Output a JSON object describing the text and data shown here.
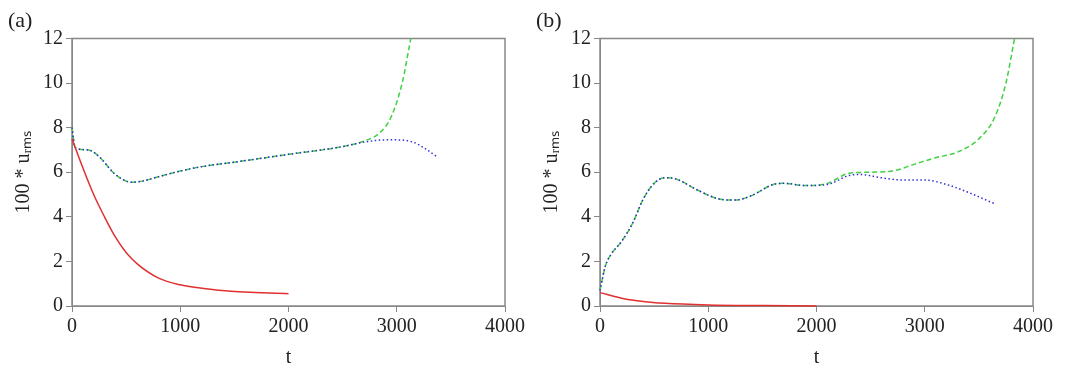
{
  "chart_data": [
    {
      "type": "line",
      "title": "(a)",
      "xlabel": "t",
      "ylabel": "100 * uᵣₘₛ",
      "xlim": [
        0,
        4000
      ],
      "xticks": [
        0,
        1000,
        2000,
        3000,
        4000
      ],
      "ylim": [
        0,
        12
      ],
      "yticks": [
        0,
        2,
        4,
        6,
        8,
        10,
        12
      ],
      "grid": false,
      "legend": false,
      "marker": "none",
      "series": [
        {
          "color": "#e03030",
          "line_style": "solid",
          "x": [
            0,
            100,
            200,
            300,
            400,
            500,
            600,
            800,
            1000,
            1200,
            1500,
            2000
          ],
          "values": [
            7.5,
            6.2,
            5.0,
            4.0,
            3.1,
            2.4,
            1.9,
            1.25,
            0.95,
            0.8,
            0.65,
            0.55
          ]
        },
        {
          "color": "#3030d0",
          "line_style": "dotted",
          "x": [
            0,
            30,
            150,
            250,
            400,
            550,
            650,
            800,
            1000,
            1200,
            1500,
            2000,
            2500,
            2700,
            2900,
            3000,
            3150,
            3250,
            3370
          ],
          "values": [
            8.0,
            7.1,
            7.0,
            6.7,
            5.9,
            5.55,
            5.6,
            5.8,
            6.05,
            6.25,
            6.45,
            6.8,
            7.15,
            7.35,
            7.45,
            7.45,
            7.35,
            7.1,
            6.7
          ]
        },
        {
          "color": "#40d040",
          "line_style": "dashed",
          "x": [
            0,
            30,
            150,
            250,
            400,
            550,
            650,
            800,
            1000,
            1200,
            1500,
            2000,
            2500,
            2700,
            2850,
            2950,
            3050,
            3130
          ],
          "values": [
            8.0,
            7.1,
            7.0,
            6.7,
            5.9,
            5.55,
            5.6,
            5.8,
            6.05,
            6.25,
            6.45,
            6.8,
            7.15,
            7.4,
            7.8,
            8.5,
            10.0,
            12
          ]
        }
      ]
    },
    {
      "type": "line",
      "title": "(b)",
      "xlabel": "t",
      "ylabel": "100 * uᵣₘₛ",
      "xlim": [
        0,
        4000
      ],
      "xticks": [
        0,
        1000,
        2000,
        3000,
        4000
      ],
      "ylim": [
        0,
        12
      ],
      "yticks": [
        0,
        2,
        4,
        6,
        8,
        10,
        12
      ],
      "grid": false,
      "legend": false,
      "marker": "none",
      "series": [
        {
          "color": "#e03030",
          "line_style": "solid",
          "x": [
            0,
            200,
            400,
            600,
            1000,
            1500,
            2000
          ],
          "values": [
            0.6,
            0.35,
            0.2,
            0.12,
            0.05,
            0.02,
            0
          ]
        },
        {
          "color": "#3030d0",
          "line_style": "dotted",
          "x": [
            0,
            50,
            100,
            200,
            300,
            400,
            500,
            600,
            700,
            900,
            1100,
            1250,
            1400,
            1600,
            1700,
            1900,
            2100,
            2300,
            2400,
            2600,
            2800,
            3000,
            3200,
            3400,
            3640
          ],
          "values": [
            0.7,
            1.8,
            2.3,
            2.9,
            3.7,
            4.8,
            5.5,
            5.75,
            5.7,
            5.2,
            4.8,
            4.75,
            4.95,
            5.45,
            5.5,
            5.4,
            5.45,
            5.85,
            5.9,
            5.75,
            5.65,
            5.65,
            5.45,
            5.1,
            4.6
          ]
        },
        {
          "color": "#40d040",
          "line_style": "dashed",
          "x": [
            0,
            50,
            100,
            200,
            300,
            400,
            500,
            600,
            700,
            900,
            1100,
            1250,
            1400,
            1600,
            1700,
            1900,
            2100,
            2300,
            2500,
            2700,
            2900,
            3100,
            3300,
            3500,
            3650,
            3750,
            3830
          ],
          "values": [
            0.7,
            1.8,
            2.3,
            2.9,
            3.7,
            4.8,
            5.5,
            5.75,
            5.7,
            5.2,
            4.8,
            4.75,
            4.95,
            5.45,
            5.5,
            5.4,
            5.5,
            5.95,
            6.0,
            6.05,
            6.35,
            6.65,
            6.9,
            7.5,
            8.5,
            10,
            12
          ]
        }
      ]
    }
  ]
}
